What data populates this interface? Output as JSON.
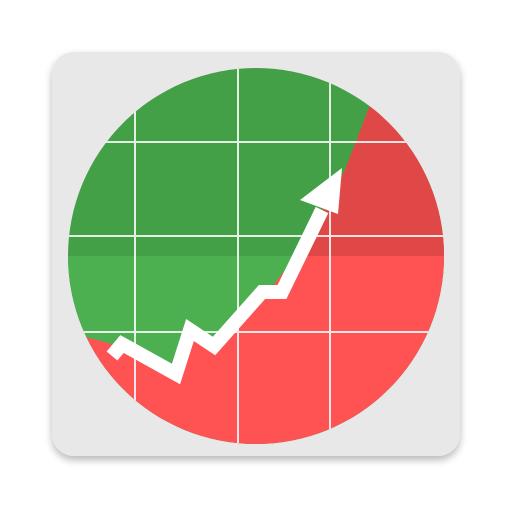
{
  "icon": {
    "name": "stock-chart-app-icon",
    "tile_color": "#e8e8e8",
    "tile_shadow_color": "#bdbdbd",
    "upper_region_color": "#43a047",
    "upper_region_highlight": "#4caf50",
    "lower_region_color": "#ff5252",
    "lower_region_shade": "#e04848",
    "grid_color": "#ffffff",
    "trend_line_color": "#ffffff",
    "trend_direction": "up"
  }
}
